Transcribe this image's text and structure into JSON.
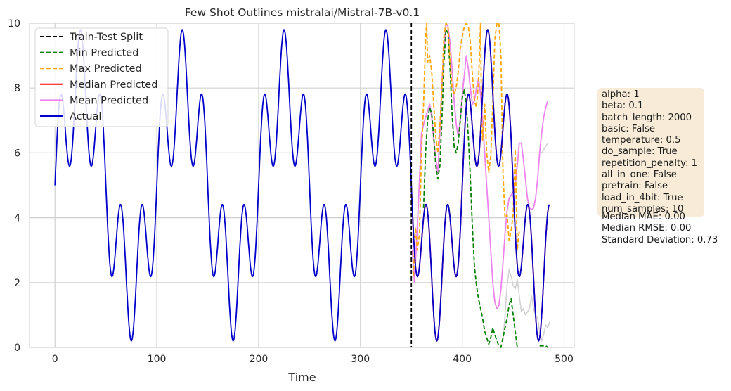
{
  "chart_data": {
    "type": "line",
    "title": "Few Shot Outlines mistralai/Mistral-7B-v0.1",
    "xlabel": "Time",
    "ylabel": "",
    "xlim": [
      -25,
      510
    ],
    "ylim": [
      0,
      10
    ],
    "xticks": [
      "0",
      "100",
      "200",
      "300",
      "400",
      "500"
    ],
    "yticks": [
      "0",
      "2",
      "4",
      "6",
      "8",
      "10"
    ],
    "grid": true,
    "legend_position": "top-left",
    "split_x": 350,
    "actual_params": {
      "length": 486,
      "period_long": 100,
      "period_short": 20,
      "amp_long": 3.0,
      "amp_short": 1.8,
      "offset": 5.0
    },
    "series": [
      {
        "name": "Train-Test Split",
        "color": "#000000",
        "style": "dashed"
      },
      {
        "name": "Min Predicted",
        "color": "#008000",
        "style": "dashed",
        "points": [
          [
            362,
            4.3
          ],
          [
            364,
            6.0
          ],
          [
            366,
            7.0
          ],
          [
            368,
            7.4
          ],
          [
            370,
            7.2
          ],
          [
            372,
            6.5
          ],
          [
            374,
            5.6
          ],
          [
            376,
            5.2
          ],
          [
            378,
            5.6
          ],
          [
            380,
            7.0
          ],
          [
            382,
            8.8
          ],
          [
            384,
            9.8
          ],
          [
            386,
            9.7
          ],
          [
            388,
            8.6
          ],
          [
            390,
            7.2
          ],
          [
            392,
            6.2
          ],
          [
            394,
            6.0
          ],
          [
            396,
            6.3
          ],
          [
            398,
            7.0
          ],
          [
            400,
            7.7
          ],
          [
            402,
            7.95
          ],
          [
            404,
            7.5
          ],
          [
            406,
            6.5
          ],
          [
            408,
            5.2
          ],
          [
            410,
            3.7
          ],
          [
            412,
            2.5
          ],
          [
            414,
            1.9
          ],
          [
            416,
            1.5
          ],
          [
            418,
            1.2
          ],
          [
            420,
            0.9
          ],
          [
            422,
            0.5
          ],
          [
            424,
            0.3
          ],
          [
            426,
            0.1
          ],
          [
            428,
            0.3
          ],
          [
            430,
            0.6
          ],
          [
            432,
            0.4
          ],
          [
            434,
            0.2
          ],
          [
            436,
            0.05
          ],
          [
            438,
            0.0
          ],
          [
            440,
            0.3
          ],
          [
            442,
            0.6
          ],
          [
            444,
            0.9
          ],
          [
            446,
            1.3
          ],
          [
            448,
            1.5
          ],
          [
            450,
            1.0
          ],
          [
            452,
            0.5
          ],
          [
            454,
            0.0
          ]
        ],
        "points_tail": [
          [
            476,
            0.05
          ],
          [
            478,
            0.05
          ],
          [
            480,
            0.05
          ],
          [
            482,
            0.05
          ],
          [
            484,
            0.0
          ]
        ]
      },
      {
        "name": "Max Predicted",
        "color": "#ffa500",
        "style": "dashed",
        "points": [
          [
            352,
            2.2
          ],
          [
            354,
            3.7
          ],
          [
            356,
            3.0
          ],
          [
            358,
            3.5
          ],
          [
            360,
            6.0
          ],
          [
            362,
            7.5
          ],
          [
            364,
            9.5
          ],
          [
            365,
            10.0
          ],
          [
            366,
            8.8
          ],
          [
            368,
            9.0
          ],
          [
            370,
            8.5
          ],
          [
            372,
            7.5
          ],
          [
            374,
            6.5
          ],
          [
            376,
            6.0
          ],
          [
            378,
            6.8
          ],
          [
            380,
            8.0
          ],
          [
            382,
            9.6
          ],
          [
            384,
            10.0
          ],
          [
            386,
            9.9
          ],
          [
            388,
            8.8
          ],
          [
            390,
            8.0
          ],
          [
            392,
            7.8
          ],
          [
            394,
            8.0
          ],
          [
            396,
            8.5
          ],
          [
            398,
            9.2
          ],
          [
            400,
            9.6
          ],
          [
            402,
            9.9
          ],
          [
            404,
            10.0
          ],
          [
            406,
            9.9
          ],
          [
            408,
            9.4
          ],
          [
            410,
            8.4
          ],
          [
            412,
            7.6
          ],
          [
            414,
            7.4
          ],
          [
            416,
            8.2
          ],
          [
            418,
            10.0
          ],
          [
            419,
            7.0
          ],
          [
            420,
            6.4
          ],
          [
            422,
            7.5
          ],
          [
            424,
            6.0
          ],
          [
            426,
            5.4
          ],
          [
            428,
            5.9
          ],
          [
            430,
            7.5
          ],
          [
            432,
            9.5
          ],
          [
            434,
            10.0
          ],
          [
            436,
            10.0
          ],
          [
            438,
            9.0
          ],
          [
            440,
            5.4
          ],
          [
            442,
            4.0
          ],
          [
            444,
            4.1
          ],
          [
            446,
            3.3
          ],
          [
            448,
            3.6
          ],
          [
            450,
            4.1
          ],
          [
            452,
            6.1
          ],
          [
            454,
            3.0
          ],
          [
            456,
            3.6
          ]
        ]
      },
      {
        "name": "Median Predicted",
        "color": "#ff0000",
        "style": "solid"
      },
      {
        "name": "Mean Predicted",
        "color": "#ee82ee",
        "style": "solid",
        "points": [
          [
            351,
            3.0
          ],
          [
            353,
            2.0
          ],
          [
            355,
            3.2
          ],
          [
            357,
            4.5
          ],
          [
            360,
            6.6
          ],
          [
            363,
            7.0
          ],
          [
            366,
            7.3
          ],
          [
            368,
            7.5
          ],
          [
            370,
            7.1
          ],
          [
            372,
            6.4
          ],
          [
            374,
            5.8
          ],
          [
            376,
            5.4
          ],
          [
            378,
            6.6
          ],
          [
            380,
            8.2
          ],
          [
            382,
            9.1
          ],
          [
            384,
            10.0
          ],
          [
            386,
            9.9
          ],
          [
            388,
            9.4
          ],
          [
            390,
            8.6
          ],
          [
            392,
            7.6
          ],
          [
            394,
            6.9
          ],
          [
            396,
            6.5
          ],
          [
            398,
            7.0
          ],
          [
            400,
            7.8
          ],
          [
            402,
            8.4
          ],
          [
            404,
            9.0
          ],
          [
            406,
            8.6
          ],
          [
            408,
            8.0
          ],
          [
            410,
            7.5
          ],
          [
            412,
            7.6
          ],
          [
            414,
            8.0
          ],
          [
            416,
            8.3
          ],
          [
            418,
            7.8
          ],
          [
            420,
            7.0
          ],
          [
            422,
            6.0
          ],
          [
            424,
            5.0
          ],
          [
            426,
            4.0
          ],
          [
            428,
            3.0
          ],
          [
            430,
            2.0
          ],
          [
            432,
            1.4
          ],
          [
            434,
            1.2
          ],
          [
            436,
            1.3
          ],
          [
            438,
            1.8
          ],
          [
            440,
            2.6
          ],
          [
            442,
            3.5
          ],
          [
            444,
            4.2
          ],
          [
            446,
            4.6
          ],
          [
            448,
            4.7
          ],
          [
            450,
            4.8
          ],
          [
            452,
            5.0
          ],
          [
            454,
            5.6
          ],
          [
            456,
            6.3
          ],
          [
            458,
            6.3
          ],
          [
            460,
            5.8
          ],
          [
            462,
            5.2
          ],
          [
            464,
            4.6
          ],
          [
            466,
            4.3
          ],
          [
            468,
            4.25
          ],
          [
            470,
            4.3
          ],
          [
            472,
            4.6
          ],
          [
            474,
            5.2
          ],
          [
            476,
            6.0
          ],
          [
            478,
            6.6
          ],
          [
            480,
            7.1
          ],
          [
            482,
            7.4
          ],
          [
            484,
            7.6
          ]
        ]
      },
      {
        "name": "Actual",
        "color": "#0000cd",
        "style": "solid"
      },
      {
        "name": "",
        "color": "#d0d0d0",
        "style": "solid",
        "points": [
          [
            440,
            0.2
          ],
          [
            442,
            1.0
          ],
          [
            444,
            1.9
          ],
          [
            446,
            2.4
          ],
          [
            448,
            2.2
          ],
          [
            450,
            1.9
          ],
          [
            452,
            1.8
          ],
          [
            454,
            2.1
          ],
          [
            456,
            1.6
          ],
          [
            458,
            1.1
          ],
          [
            460,
            1.2
          ],
          [
            462,
            1.0
          ],
          [
            464,
            1.1
          ],
          [
            466,
            1.2
          ],
          [
            468,
            1.6
          ],
          [
            470,
            1.2
          ],
          [
            472,
            1.0
          ],
          [
            474,
            0.9
          ],
          [
            476,
            0.5
          ],
          [
            478,
            0.2
          ],
          [
            480,
            0.4
          ],
          [
            482,
            0.7
          ],
          [
            484,
            0.6
          ],
          [
            486,
            0.8
          ],
          [
            478,
            6.0
          ],
          [
            480,
            6.1
          ],
          [
            482,
            6.2
          ],
          [
            484,
            6.3
          ]
        ]
      }
    ]
  },
  "info_box": {
    "params": "alpha: 1\nbeta: 0.1\nbatch_length: 2000\nbasic: False\ntemperature: 0.5\ndo_sample: True\nrepetition_penalty: 1\nall_in_one: False\npretrain: False\nload_in_4bit: True\nnum_samples: 10",
    "stats": "Median MAE: 0.00\nMedian RMSE: 0.00\nStandard Deviation: 0.73"
  }
}
